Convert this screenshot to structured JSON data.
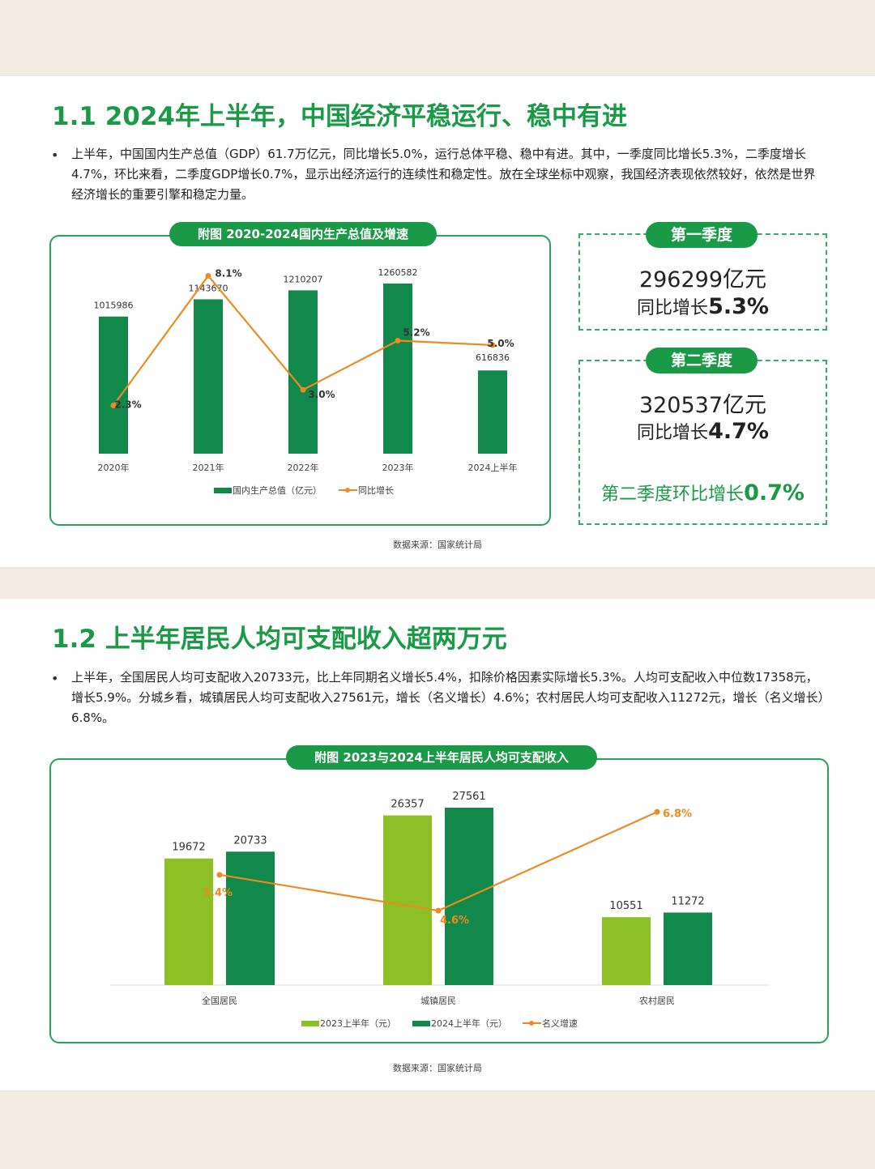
{
  "section1": {
    "title": "1.1 2024年上半年，中国经济平稳运行、稳中有进",
    "bullet": "•",
    "paragraph": "上半年，中国国内生产总值（GDP）61.7万亿元，同比增长5.0%，运行总体平稳、稳中有进。其中，一季度同比增长5.3%，二季度增长4.7%，环比来看，二季度GDP增长0.7%，显示出经济运行的连续性和稳定性。放在全球坐标中观察，我国经济表现依然较好，依然是世界经济增长的重要引擎和稳定力量。",
    "chart_title": "附图 2020-2024国内生产总值及增速",
    "source": "数据来源：国家统计局",
    "q1": {
      "label": "第一季度",
      "value": "296299亿元",
      "growth_prefix": "同比增长",
      "growth": "5.3%"
    },
    "q2": {
      "label": "第二季度",
      "value": "320537亿元",
      "growth_prefix": "同比增长",
      "growth": "4.7%",
      "qoq_prefix": "第二季度环比增长",
      "qoq": "0.7%"
    }
  },
  "section2": {
    "title": "1.2 上半年居民人均可支配收入超两万元",
    "bullet": "•",
    "paragraph": "上半年，全国居民人均可支配收入20733元，比上年同期名义增长5.4%，扣除价格因素实际增长5.3%。人均可支配收入中位数17358元，增长5.9%。分城乡看，城镇居民人均可支配收入27561元，增长（名义增长）4.6%；农村居民人均可支配收入11272元，增长（名义增长）6.8%。",
    "chart_title": "附图 2023与2024上半年居民人均可支配收入",
    "source": "数据来源：国家统计局"
  },
  "colors": {
    "brand_green": "#1a9a47",
    "bar_dark": "#11894a",
    "bar_light": "#8cc025",
    "line_orange": "#ed8a22",
    "background": "#f1ebe2"
  },
  "chart_data": [
    {
      "type": "bar",
      "title": "附图 2020-2024国内生产总值及增速",
      "categories": [
        "2020年",
        "2021年",
        "2022年",
        "2023年",
        "2024上半年"
      ],
      "series": [
        {
          "name": "国内生产总值（亿元）",
          "type": "bar",
          "values": [
            1015986,
            1143670,
            1210207,
            1260582,
            616836
          ],
          "value_labels": [
            "1015986",
            "1143670",
            "1210207",
            "1260582",
            "616836"
          ]
        },
        {
          "name": "同比增长",
          "type": "line",
          "values": [
            2.3,
            8.1,
            3.0,
            5.2,
            5.0
          ],
          "value_labels": [
            "2.3%",
            "8.1%",
            "3.0%",
            "5.2%",
            "5.0%"
          ]
        }
      ],
      "grid": false,
      "legend": "bottom"
    },
    {
      "type": "bar",
      "title": "附图 2023与2024上半年居民人均可支配收入",
      "categories": [
        "全国居民",
        "城镇居民",
        "农村居民"
      ],
      "series": [
        {
          "name": "2023上半年（元）",
          "type": "bar",
          "values": [
            19672,
            26357,
            10551
          ],
          "value_labels": [
            "19672",
            "26357",
            "10551"
          ]
        },
        {
          "name": "2024上半年（元）",
          "type": "bar",
          "values": [
            20733,
            27561,
            11272
          ],
          "value_labels": [
            "20733",
            "27561",
            "11272"
          ]
        },
        {
          "name": "名义增速",
          "type": "line",
          "values": [
            5.4,
            4.6,
            6.8
          ],
          "value_labels": [
            "5.4%",
            "4.6%",
            "6.8%"
          ]
        }
      ],
      "grid": false,
      "legend": "bottom"
    }
  ]
}
